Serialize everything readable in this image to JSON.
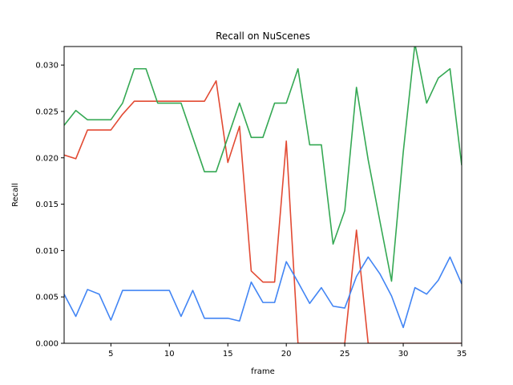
{
  "chart_data": {
    "type": "line",
    "title": "Recall on NuScenes",
    "xlabel": "frame",
    "ylabel": "Recall",
    "xlim": [
      1,
      35
    ],
    "ylim": [
      0,
      0.032
    ],
    "xticks": [
      5,
      10,
      15,
      20,
      25,
      30,
      35
    ],
    "yticks": [
      0.0,
      0.005,
      0.01,
      0.015,
      0.02,
      0.025,
      0.03
    ],
    "ytick_labels": [
      "0.000",
      "0.005",
      "0.010",
      "0.015",
      "0.020",
      "0.025",
      "0.030"
    ],
    "grid": false,
    "x": [
      1,
      2,
      3,
      4,
      5,
      6,
      7,
      8,
      9,
      10,
      11,
      12,
      13,
      14,
      15,
      16,
      17,
      18,
      19,
      20,
      21,
      22,
      23,
      24,
      25,
      26,
      27,
      28,
      29,
      30,
      31,
      32,
      33,
      34,
      35
    ],
    "series": [
      {
        "color": "#e24a33",
        "values": [
          0.0203,
          0.0199,
          0.023,
          0.023,
          0.023,
          0.0247,
          0.0261,
          0.0261,
          0.0261,
          0.0261,
          0.0261,
          0.0261,
          0.0261,
          0.0283,
          0.0195,
          0.0234,
          0.0078,
          0.0066,
          0.0066,
          0.0218,
          0.0,
          0.0,
          0.0,
          0.0,
          0.0,
          0.0122,
          0.0,
          0.0,
          0.0,
          0.0,
          0.0,
          0.0,
          0.0,
          0.0,
          0.0
        ]
      },
      {
        "color": "#34a853",
        "values": [
          0.0235,
          0.0251,
          0.0241,
          0.0241,
          0.0241,
          0.0259,
          0.0296,
          0.0296,
          0.0259,
          0.0259,
          0.0259,
          0.0222,
          0.0185,
          0.0185,
          0.0222,
          0.0259,
          0.0222,
          0.0222,
          0.0259,
          0.0259,
          0.0296,
          0.0214,
          0.0214,
          0.0107,
          0.0143,
          0.0276,
          0.0198,
          0.0132,
          0.0067,
          0.0206,
          0.0323,
          0.0259,
          0.0286,
          0.0296,
          0.0192
        ]
      },
      {
        "color": "#4285f4",
        "values": [
          0.0053,
          0.0029,
          0.0058,
          0.0053,
          0.0025,
          0.0057,
          0.0057,
          0.0057,
          0.0057,
          0.0057,
          0.0029,
          0.0057,
          0.0027,
          0.0027,
          0.0027,
          0.0024,
          0.0066,
          0.0044,
          0.0044,
          0.0088,
          0.0066,
          0.0043,
          0.006,
          0.004,
          0.0038,
          0.0072,
          0.0093,
          0.0075,
          0.0051,
          0.0017,
          0.006,
          0.0053,
          0.0068,
          0.0093,
          0.0064
        ]
      }
    ]
  }
}
